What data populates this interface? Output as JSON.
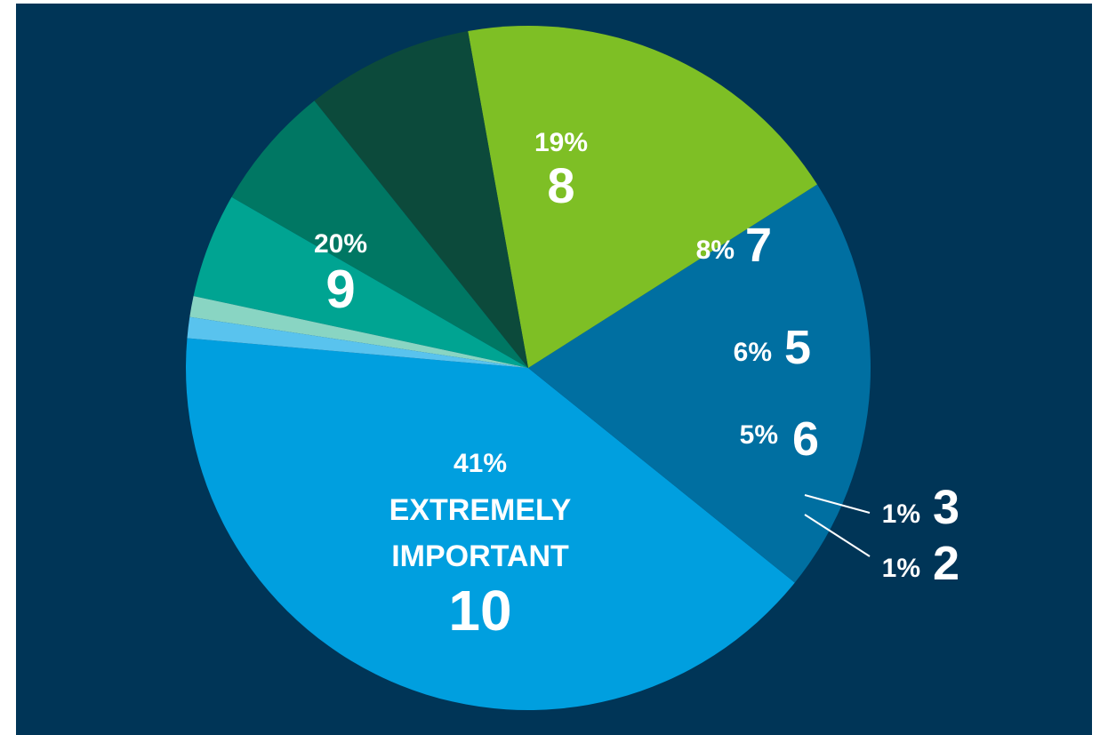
{
  "chart_data": {
    "type": "pie",
    "title": "",
    "slices": [
      {
        "category": "10",
        "label": "EXTREMELY IMPORTANT",
        "percent": "41%",
        "value": 41,
        "color": "#009fdf"
      },
      {
        "category": "9",
        "percent": "20%",
        "value": 20,
        "color": "#006fa1"
      },
      {
        "category": "8",
        "percent": "19%",
        "value": 19,
        "color": "#7ebf25"
      },
      {
        "category": "7",
        "percent": "8%",
        "value": 8,
        "color": "#0c4a3b"
      },
      {
        "category": "5",
        "percent": "6%",
        "value": 6,
        "color": "#007763"
      },
      {
        "category": "6",
        "percent": "5%",
        "value": 5,
        "color": "#00a492"
      },
      {
        "category": "3",
        "percent": "1%",
        "value": 1,
        "color": "#89d5c3"
      },
      {
        "category": "2",
        "percent": "1%",
        "value": 1,
        "color": "#59c3ee"
      }
    ]
  },
  "background_color": "#003557"
}
